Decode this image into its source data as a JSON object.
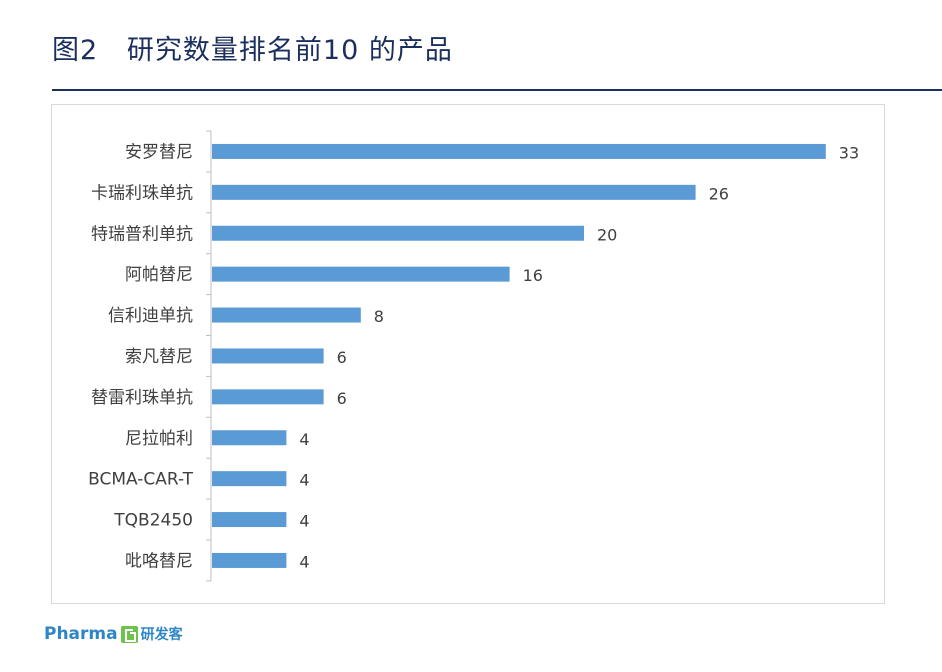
{
  "header": {
    "title": "图2   研究数量排名前10 的产品"
  },
  "chart_data": {
    "type": "bar",
    "orientation": "horizontal",
    "categories": [
      "安罗替尼",
      "卡瑞利珠单抗",
      "特瑞普利单抗",
      "阿帕替尼",
      "信利迪单抗",
      "索凡替尼",
      "替雷利珠单抗",
      "尼拉帕利",
      "BCMA-CAR-T",
      "TQB2450",
      "吡咯替尼"
    ],
    "values": [
      33,
      26,
      20,
      16,
      8,
      6,
      6,
      4,
      4,
      4,
      4
    ],
    "data_labels": [
      "33",
      "26",
      "20",
      "16",
      "8",
      "6",
      "6",
      "4",
      "4",
      "4",
      "4"
    ],
    "xlim": [
      0,
      35
    ],
    "grid": false,
    "legend": "none",
    "colors": {
      "bar": "#5b9bd5",
      "axis": "#bfbfbf",
      "label": "#404040"
    }
  },
  "footer": {
    "logo_text": "Pharma",
    "logo_cn": "研发客"
  }
}
